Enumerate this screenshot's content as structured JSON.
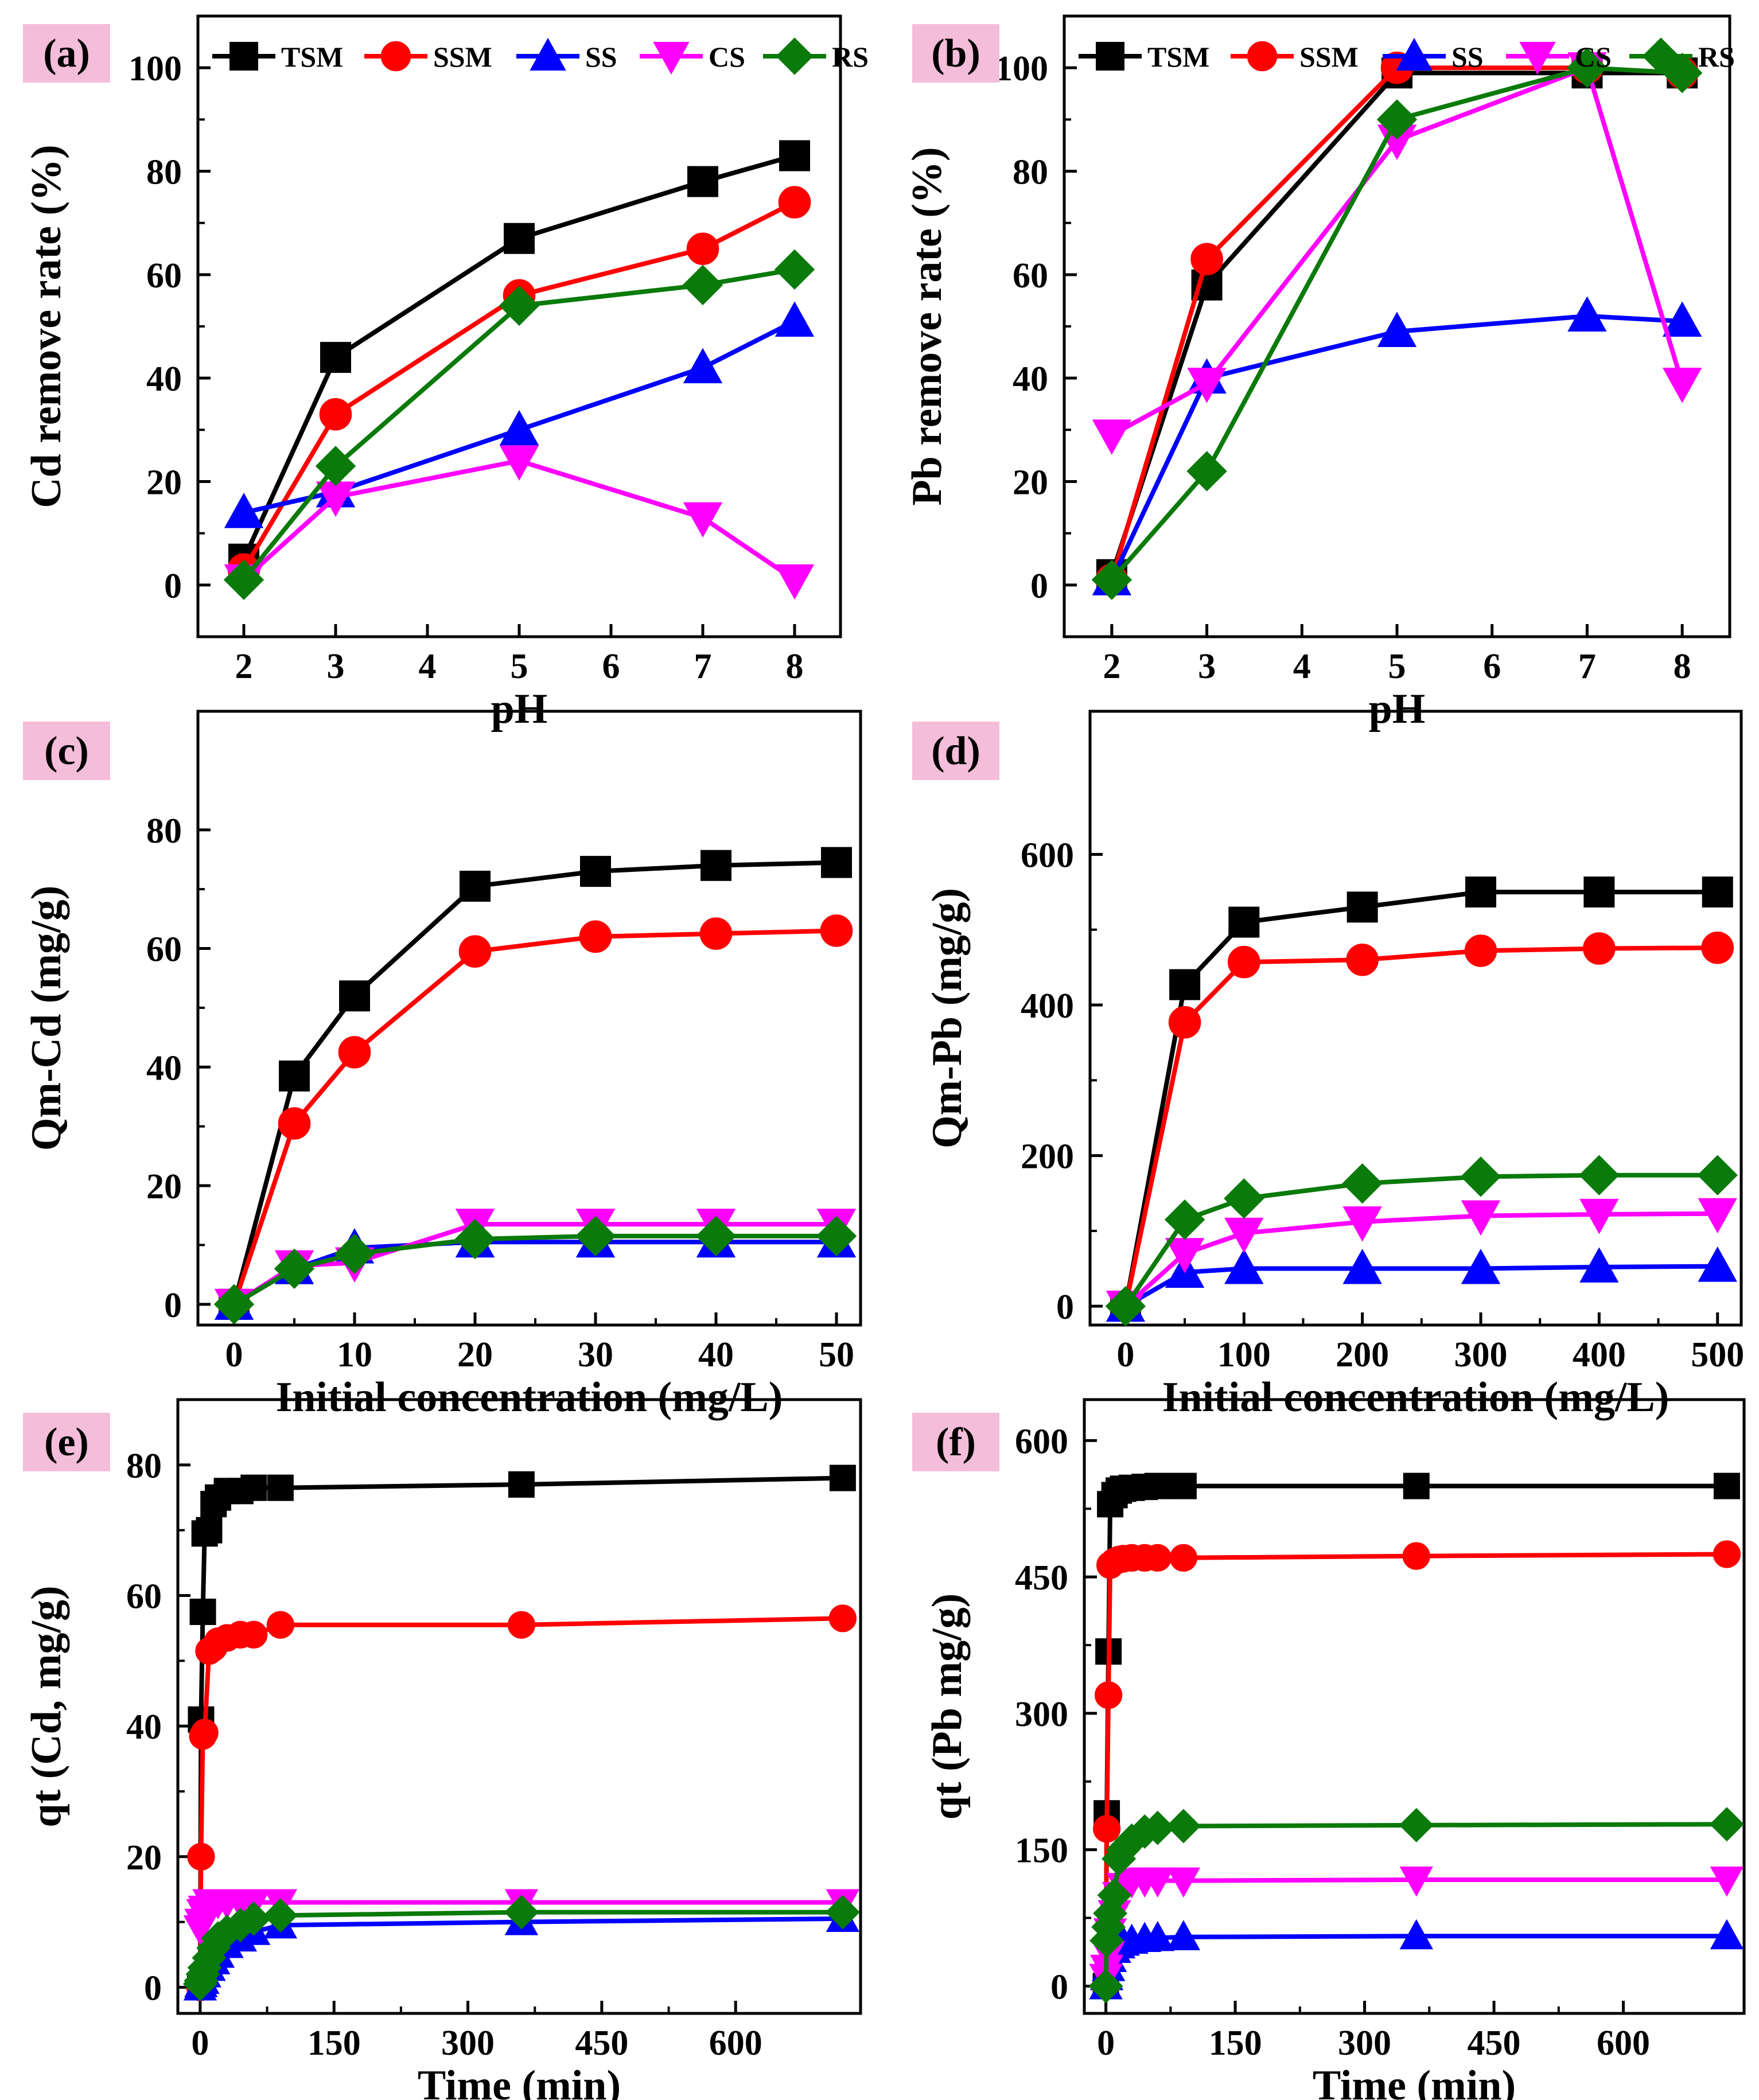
{
  "figure": {
    "legend_entries": [
      "TSM",
      "SSM",
      "SS",
      "CS",
      "RS"
    ],
    "colors": {
      "TSM": "#000000",
      "SSM": "#ff0000",
      "SS": "#0000ff",
      "CS": "#ff00ff",
      "RS": "#0a7a0a",
      "label_bg": "#f4bdd9"
    },
    "markers": {
      "TSM": "square",
      "SSM": "circle",
      "SS": "triangle-up",
      "CS": "triangle-down",
      "RS": "diamond"
    }
  },
  "chart_data": [
    {
      "id": "a",
      "panel_label": "(a)",
      "type": "line",
      "xlabel": "pH",
      "ylabel": "Cd remove rate (%)",
      "xlim": [
        1.5,
        8.5
      ],
      "ylim": [
        -10,
        110
      ],
      "xticks": [
        2,
        3,
        4,
        5,
        6,
        7,
        8
      ],
      "yticks": [
        0,
        20,
        40,
        60,
        80,
        100
      ],
      "x": [
        2,
        3,
        5,
        7,
        8
      ],
      "legend": true,
      "series": [
        {
          "name": "TSM",
          "values": [
            5,
            44,
            67,
            78,
            83
          ]
        },
        {
          "name": "SSM",
          "values": [
            3,
            33,
            56,
            65,
            74
          ]
        },
        {
          "name": "SS",
          "values": [
            14,
            18,
            30,
            42,
            51
          ]
        },
        {
          "name": "CS",
          "values": [
            1,
            17,
            24,
            13,
            1
          ]
        },
        {
          "name": "RS",
          "values": [
            1,
            23,
            54,
            58,
            61
          ]
        }
      ]
    },
    {
      "id": "b",
      "panel_label": "(b)",
      "type": "line",
      "xlabel": "pH",
      "ylabel": "Pb remove rate  (%)",
      "xlim": [
        1.5,
        8.5
      ],
      "ylim": [
        -10,
        110
      ],
      "xticks": [
        2,
        3,
        4,
        5,
        6,
        7,
        8
      ],
      "yticks": [
        0,
        20,
        40,
        60,
        80,
        100
      ],
      "x": [
        2,
        3,
        5,
        7,
        8
      ],
      "legend": true,
      "series": [
        {
          "name": "TSM",
          "values": [
            2,
            58,
            99,
            99,
            99
          ]
        },
        {
          "name": "SSM",
          "values": [
            1,
            63,
            100,
            100,
            99
          ]
        },
        {
          "name": "SS",
          "values": [
            1,
            40,
            49,
            52,
            51
          ]
        },
        {
          "name": "CS",
          "values": [
            29,
            39,
            86,
            100,
            39
          ]
        },
        {
          "name": "RS",
          "values": [
            1,
            22,
            90,
            100,
            99
          ]
        }
      ]
    },
    {
      "id": "c",
      "panel_label": "(c)",
      "type": "line",
      "xlabel": "Initial concentration (mg/L)",
      "ylabel": "Qm-Cd (mg/g)",
      "xlim": [
        -3,
        52
      ],
      "ylim": [
        -3.5,
        100
      ],
      "xticks": [
        0,
        10,
        20,
        30,
        40,
        50
      ],
      "yticks": [
        0,
        20,
        40,
        60,
        80
      ],
      "x": [
        0,
        5,
        10,
        20,
        30,
        40,
        50
      ],
      "legend": false,
      "series": [
        {
          "name": "TSM",
          "values": [
            0,
            38.5,
            52,
            70.5,
            73,
            74,
            74.5
          ]
        },
        {
          "name": "SSM",
          "values": [
            0,
            30.5,
            42.5,
            59.5,
            62,
            62.5,
            63
          ]
        },
        {
          "name": "SS",
          "values": [
            0,
            6,
            9.5,
            10.5,
            10.5,
            10.5,
            10.5
          ]
        },
        {
          "name": "CS",
          "values": [
            0,
            6.5,
            7,
            13.5,
            13.5,
            13.5,
            13.5
          ]
        },
        {
          "name": "RS",
          "values": [
            0,
            6,
            8.5,
            11,
            11.5,
            11.5,
            11.5
          ]
        }
      ]
    },
    {
      "id": "d",
      "panel_label": "(d)",
      "type": "line",
      "xlabel": "Initial concentration (mg/L)",
      "ylabel": "Qm-Pb  (mg/g)",
      "xlim": [
        -30,
        520
      ],
      "ylim": [
        -25,
        790
      ],
      "xticks": [
        0,
        100,
        200,
        300,
        400,
        500
      ],
      "yticks": [
        0,
        200,
        400,
        600
      ],
      "x": [
        0,
        50,
        100,
        200,
        300,
        400,
        500
      ],
      "legend": false,
      "series": [
        {
          "name": "TSM",
          "values": [
            0,
            427,
            510,
            530,
            550,
            550,
            550
          ]
        },
        {
          "name": "SSM",
          "values": [
            0,
            377,
            457,
            460,
            472,
            475,
            476
          ]
        },
        {
          "name": "SS",
          "values": [
            0,
            45,
            50,
            50,
            50,
            52,
            53
          ]
        },
        {
          "name": "CS",
          "values": [
            0,
            70,
            97,
            112,
            120,
            122,
            123
          ]
        },
        {
          "name": "RS",
          "values": [
            0,
            115,
            143,
            163,
            172,
            174,
            174
          ]
        }
      ]
    },
    {
      "id": "e",
      "panel_label": "(e)",
      "type": "line",
      "xlabel": "Time (min)",
      "ylabel": "qt (Cd, mg/g)",
      "xlim": [
        -25,
        740
      ],
      "ylim": [
        -4,
        90
      ],
      "xticks": [
        0,
        150,
        300,
        450,
        600
      ],
      "yticks": [
        0,
        20,
        40,
        60,
        80
      ],
      "x": [
        0,
        1,
        3,
        5,
        10,
        15,
        20,
        30,
        45,
        60,
        90,
        360,
        720
      ],
      "legend": false,
      "series": [
        {
          "name": "TSM",
          "values": [
            0,
            41,
            57.5,
            69.5,
            70,
            74,
            75,
            76,
            76,
            76.5,
            76.5,
            77,
            78
          ]
        },
        {
          "name": "SSM",
          "values": [
            0,
            20,
            38.5,
            39,
            51.5,
            52,
            53,
            53.5,
            54,
            54,
            55.5,
            55.5,
            56.5
          ]
        },
        {
          "name": "SS",
          "values": [
            0,
            0.5,
            1,
            2,
            3,
            4,
            5,
            6.5,
            7.5,
            8.5,
            9.5,
            10,
            10.5
          ]
        },
        {
          "name": "CS",
          "values": [
            9,
            10,
            11.5,
            12,
            13,
            13,
            13,
            13,
            13,
            13,
            13,
            13,
            13
          ]
        },
        {
          "name": "RS",
          "values": [
            0.5,
            1,
            2,
            3,
            4.5,
            6,
            7.5,
            8.5,
            9.5,
            10.5,
            11,
            11.5,
            11.5
          ]
        }
      ]
    },
    {
      "id": "f",
      "panel_label": "(f)",
      "type": "line",
      "xlabel": "Time (min)",
      "ylabel": "qt (Pb mg/g)",
      "xlim": [
        -25,
        740
      ],
      "ylim": [
        -30,
        645
      ],
      "xticks": [
        0,
        150,
        300,
        450,
        600
      ],
      "yticks": [
        0,
        150,
        300,
        450,
        600
      ],
      "x": [
        0,
        1,
        3,
        5,
        10,
        15,
        20,
        30,
        45,
        60,
        90,
        360,
        720
      ],
      "legend": false,
      "series": [
        {
          "name": "TSM",
          "values": [
            0,
            190,
            368,
            530,
            540,
            545,
            547,
            548,
            549,
            550,
            550,
            550,
            550
          ]
        },
        {
          "name": "SSM",
          "values": [
            0,
            173,
            320,
            463,
            467,
            469,
            470,
            471,
            471,
            471,
            471,
            473,
            475
          ]
        },
        {
          "name": "SS",
          "values": [
            0,
            10,
            20,
            30,
            40,
            45,
            48,
            50,
            52,
            53,
            54,
            55,
            55
          ]
        },
        {
          "name": "CS",
          "values": [
            10,
            20,
            35,
            60,
            80,
            100,
            110,
            115,
            116,
            116,
            116,
            117,
            117
          ]
        },
        {
          "name": "RS",
          "values": [
            0,
            50,
            65,
            80,
            100,
            140,
            150,
            160,
            170,
            174,
            176,
            177,
            178
          ]
        }
      ]
    }
  ]
}
